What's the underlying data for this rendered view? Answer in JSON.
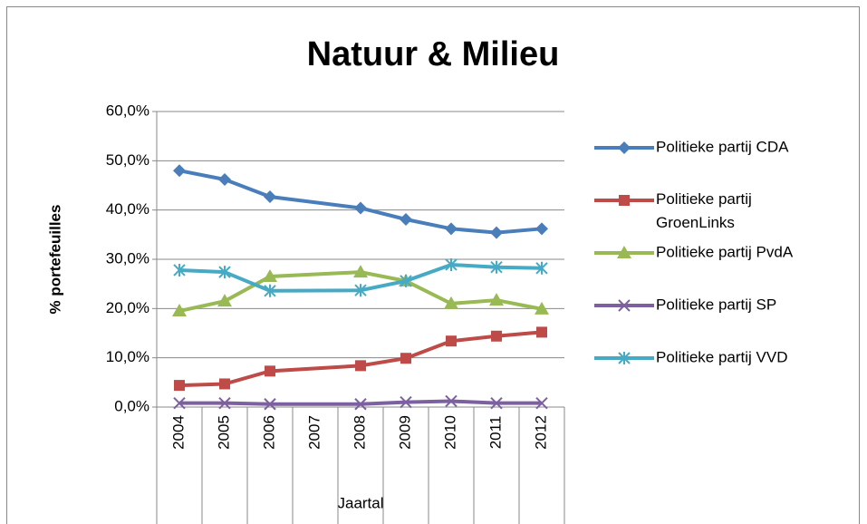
{
  "chart_data": {
    "type": "line",
    "title": "Natuur & Milieu",
    "x_label": "Jaartal",
    "y_label": "% portefeuilles",
    "x": [
      2004,
      2005,
      2006,
      2008,
      2009,
      2010,
      2011,
      2012
    ],
    "xlim": [
      2003.5,
      2012.5
    ],
    "xticks": [
      2004,
      2005,
      2006,
      2007,
      2008,
      2009,
      2010,
      2011,
      2012
    ],
    "ylim": [
      0,
      60
    ],
    "yticks": [
      {
        "value": 0,
        "label": "0,0%"
      },
      {
        "value": 10,
        "label": "10,0%"
      },
      {
        "value": 20,
        "label": "20,0%"
      },
      {
        "value": 30,
        "label": "30,0%"
      },
      {
        "value": 40,
        "label": "40,0%"
      },
      {
        "value": 50,
        "label": "50,0%"
      },
      {
        "value": 60,
        "label": "60,0%"
      }
    ],
    "grid": true,
    "legend": "right",
    "series": [
      {
        "name": "Politieke partij CDA",
        "color": "#4a7ebb",
        "marker": "diamond",
        "values": [
          48.0,
          46.2,
          42.7,
          40.4,
          38.1,
          36.2,
          35.4,
          36.2
        ]
      },
      {
        "name": "Politieke partij GroenLinks",
        "color": "#be4b48",
        "marker": "square",
        "values": [
          4.4,
          4.7,
          7.3,
          8.4,
          9.9,
          13.4,
          14.4,
          15.2
        ]
      },
      {
        "name": "Politieke partij PvdA",
        "color": "#98b954",
        "marker": "triangle",
        "values": [
          19.5,
          21.5,
          26.5,
          27.4,
          25.6,
          21.0,
          21.7,
          19.9
        ]
      },
      {
        "name": "Politieke partij SP",
        "color": "#7d60a0",
        "marker": "x",
        "values": [
          0.8,
          0.8,
          0.6,
          0.6,
          1.0,
          1.2,
          0.8,
          0.8
        ]
      },
      {
        "name": "Politieke partij VVD",
        "color": "#46aac5",
        "marker": "star",
        "values": [
          27.8,
          27.4,
          23.6,
          23.7,
          25.6,
          28.9,
          28.4,
          28.2
        ]
      }
    ]
  }
}
